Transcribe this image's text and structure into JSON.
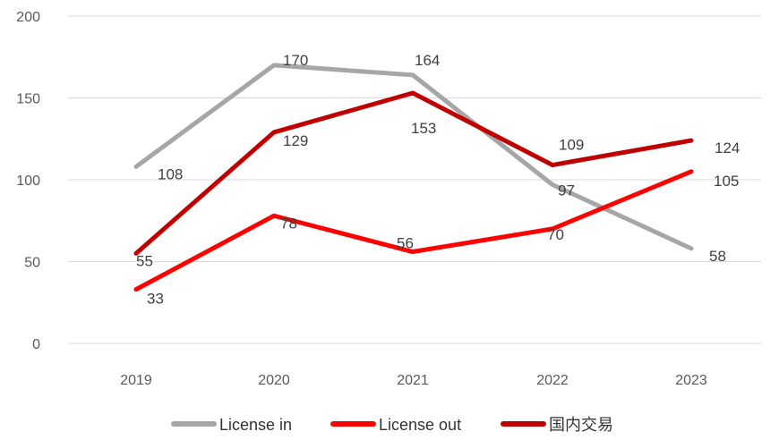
{
  "chart_data": {
    "type": "line",
    "categories": [
      "2019",
      "2020",
      "2021",
      "2022",
      "2023"
    ],
    "ylim": [
      0,
      200
    ],
    "yticks": [
      0,
      50,
      100,
      150,
      200
    ],
    "grid": true,
    "legend_position": "bottom",
    "series": [
      {
        "name": "License in",
        "color": "#a6a6a6",
        "values": [
          108,
          170,
          164,
          97,
          58
        ]
      },
      {
        "name": "License out",
        "color": "#ff0000",
        "values": [
          33,
          78,
          56,
          70,
          105
        ]
      },
      {
        "name": "国内交易",
        "color": "#c00000",
        "values": [
          55,
          129,
          153,
          109,
          124
        ]
      }
    ]
  }
}
